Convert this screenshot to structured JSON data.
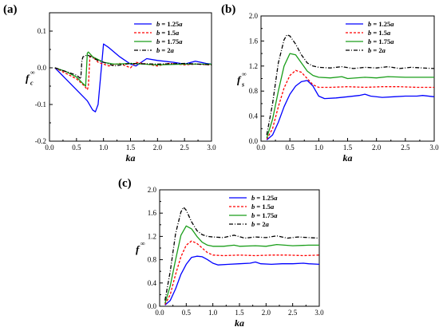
{
  "chart_data": [
    {
      "type": "line",
      "panel_label": "(a)",
      "ylabel": "f",
      "ylabel_sub": "c",
      "ylabel_sup": "∞",
      "xlabel": "ka",
      "xlim": [
        0.0,
        3.0
      ],
      "ylim": [
        -0.2,
        0.15
      ],
      "xticks": [
        "0.0",
        "0.5",
        "1.0",
        "1.5",
        "2.0",
        "2.5",
        "3.0"
      ],
      "yticks": [
        "-0.2",
        "-0.1",
        "0.0",
        "0.1"
      ],
      "ytick_values": [
        -0.2,
        -0.1,
        0.0,
        0.1
      ],
      "grid": false,
      "legend_position": "top-right",
      "series": [
        {
          "name": "b = 1.25a",
          "name_parts": [
            "b",
            " = 1.25",
            "a"
          ],
          "color": "#0000ff",
          "dash": "solid",
          "x": [
            0.1,
            0.3,
            0.5,
            0.7,
            0.8,
            0.85,
            0.9,
            1.0,
            1.1,
            1.3,
            1.5,
            1.6,
            1.7,
            1.8,
            2.0,
            2.3,
            2.5,
            2.7,
            2.9,
            3.0
          ],
          "y": [
            0.0,
            -0.03,
            -0.06,
            -0.09,
            -0.115,
            -0.12,
            -0.1,
            0.065,
            0.055,
            0.03,
            0.01,
            0.005,
            0.015,
            0.025,
            0.02,
            0.015,
            0.01,
            0.018,
            0.012,
            0.01
          ]
        },
        {
          "name": "b = 1.5a",
          "name_parts": [
            "b",
            " = 1.5",
            "a"
          ],
          "color": "#ff0000",
          "dash": "3,2",
          "x": [
            0.1,
            0.3,
            0.5,
            0.65,
            0.7,
            0.72,
            0.75,
            0.8,
            0.9,
            1.1,
            1.3,
            1.5,
            1.6,
            1.8,
            2.0,
            2.2,
            2.5,
            2.7,
            3.0
          ],
          "y": [
            0.0,
            -0.015,
            -0.03,
            -0.05,
            -0.06,
            -0.05,
            0.035,
            0.03,
            0.015,
            0.005,
            0.012,
            0.0,
            0.015,
            0.01,
            0.005,
            0.012,
            0.008,
            0.01,
            0.008
          ]
        },
        {
          "name": "b = 1.75a",
          "name_parts": [
            "b",
            " = 1.75",
            "a"
          ],
          "color": "#1a9e1a",
          "dash": "solid",
          "x": [
            0.1,
            0.3,
            0.5,
            0.6,
            0.67,
            0.7,
            0.72,
            0.8,
            1.0,
            1.2,
            1.5,
            2.0,
            2.5,
            3.0
          ],
          "y": [
            0.0,
            -0.01,
            -0.025,
            -0.04,
            -0.05,
            0.04,
            0.043,
            0.03,
            0.015,
            0.01,
            0.012,
            0.008,
            0.01,
            0.01
          ]
        },
        {
          "name": "b = 2a",
          "name_parts": [
            "b",
            " = 2",
            "a"
          ],
          "color": "#000000",
          "dash": "5,2,1,2",
          "x": [
            0.1,
            0.3,
            0.5,
            0.58,
            0.6,
            0.62,
            0.7,
            0.9,
            1.2,
            1.5,
            2.0,
            2.5,
            3.0
          ],
          "y": [
            0.0,
            -0.01,
            -0.02,
            -0.03,
            0.02,
            0.03,
            0.035,
            0.02,
            0.005,
            0.012,
            0.01,
            0.012,
            0.008
          ]
        }
      ]
    },
    {
      "type": "line",
      "panel_label": "(b)",
      "ylabel": "f",
      "ylabel_sub": "s",
      "ylabel_sup": "∞",
      "xlabel": "ka",
      "xlim": [
        0.0,
        3.0
      ],
      "ylim": [
        0.0,
        2.0
      ],
      "xticks": [
        "0.0",
        "0.5",
        "1.0",
        "1.5",
        "2.0",
        "2.5",
        "3.0"
      ],
      "yticks": [
        "0.0",
        "0.4",
        "0.8",
        "1.2",
        "1.6",
        "2.0"
      ],
      "ytick_values": [
        0.0,
        0.4,
        0.8,
        1.2,
        1.6,
        2.0
      ],
      "grid": false,
      "legend_position": "top-right",
      "series": [
        {
          "name": "b = 1.25a",
          "name_parts": [
            "b",
            " = 1.25",
            "a"
          ],
          "color": "#0000ff",
          "dash": "solid",
          "x": [
            0.1,
            0.2,
            0.3,
            0.4,
            0.5,
            0.6,
            0.7,
            0.8,
            0.9,
            1.0,
            1.1,
            1.3,
            1.5,
            1.7,
            1.8,
            1.9,
            2.1,
            2.3,
            2.5,
            2.7,
            2.8,
            3.0
          ],
          "y": [
            0.02,
            0.1,
            0.3,
            0.55,
            0.75,
            0.88,
            0.95,
            0.97,
            0.88,
            0.72,
            0.68,
            0.69,
            0.71,
            0.73,
            0.75,
            0.72,
            0.7,
            0.71,
            0.72,
            0.72,
            0.73,
            0.71
          ]
        },
        {
          "name": "b = 1.5a",
          "name_parts": [
            "b",
            " = 1.5",
            "a"
          ],
          "color": "#ff0000",
          "dash": "3,2",
          "x": [
            0.1,
            0.2,
            0.3,
            0.4,
            0.5,
            0.6,
            0.7,
            0.8,
            0.9,
            1.0,
            1.2,
            1.5,
            1.8,
            2.1,
            2.4,
            2.7,
            3.0
          ],
          "y": [
            0.03,
            0.2,
            0.55,
            0.85,
            1.05,
            1.13,
            1.1,
            1.0,
            0.9,
            0.86,
            0.86,
            0.87,
            0.86,
            0.87,
            0.87,
            0.86,
            0.86
          ]
        },
        {
          "name": "b = 1.75a",
          "name_parts": [
            "b",
            " = 1.75",
            "a"
          ],
          "color": "#1a9e1a",
          "dash": "solid",
          "x": [
            0.1,
            0.2,
            0.3,
            0.4,
            0.5,
            0.6,
            0.7,
            0.8,
            0.9,
            1.0,
            1.2,
            1.4,
            1.5,
            1.8,
            2.0,
            2.2,
            2.5,
            2.8,
            3.0
          ],
          "y": [
            0.05,
            0.35,
            0.8,
            1.2,
            1.4,
            1.38,
            1.25,
            1.12,
            1.05,
            1.02,
            1.01,
            1.03,
            1.0,
            1.02,
            1.01,
            1.03,
            1.02,
            1.02,
            1.02
          ]
        },
        {
          "name": "b = 2a",
          "name_parts": [
            "b",
            " = 2",
            "a"
          ],
          "color": "#000000",
          "dash": "5,2,1,2",
          "x": [
            0.1,
            0.2,
            0.3,
            0.4,
            0.45,
            0.5,
            0.6,
            0.7,
            0.8,
            0.9,
            1.0,
            1.2,
            1.4,
            1.6,
            1.8,
            2.0,
            2.2,
            2.4,
            2.6,
            2.8,
            3.0
          ],
          "y": [
            0.1,
            0.6,
            1.25,
            1.62,
            1.7,
            1.68,
            1.55,
            1.38,
            1.25,
            1.2,
            1.18,
            1.17,
            1.19,
            1.16,
            1.18,
            1.17,
            1.19,
            1.16,
            1.18,
            1.17,
            1.16
          ]
        }
      ]
    },
    {
      "type": "line",
      "panel_label": "(c)",
      "ylabel": "f",
      "ylabel_sub": "",
      "ylabel_sup": "∞",
      "xlabel": "ka",
      "xlim": [
        0.0,
        3.0
      ],
      "ylim": [
        0.0,
        2.0
      ],
      "xticks": [
        "0.0",
        "0.5",
        "1.0",
        "1.5",
        "2.0",
        "2.5",
        "3.0"
      ],
      "yticks": [
        "0.0",
        "0.4",
        "0.8",
        "1.2",
        "1.6",
        "2.0"
      ],
      "ytick_values": [
        0.0,
        0.4,
        0.8,
        1.2,
        1.6,
        2.0
      ],
      "grid": false,
      "legend_position": "top-right",
      "series": [
        {
          "name": "b = 1.25a",
          "name_parts": [
            "b",
            " = 1.25",
            "a"
          ],
          "color": "#0000ff",
          "dash": "solid",
          "x": [
            0.1,
            0.2,
            0.3,
            0.4,
            0.5,
            0.6,
            0.7,
            0.8,
            0.9,
            1.0,
            1.1,
            1.3,
            1.5,
            1.7,
            1.8,
            1.9,
            2.1,
            2.3,
            2.5,
            2.7,
            2.8,
            3.0
          ],
          "y": [
            0.02,
            0.1,
            0.3,
            0.55,
            0.72,
            0.84,
            0.86,
            0.85,
            0.8,
            0.74,
            0.71,
            0.72,
            0.73,
            0.74,
            0.76,
            0.73,
            0.72,
            0.73,
            0.73,
            0.74,
            0.73,
            0.72
          ]
        },
        {
          "name": "b = 1.5a",
          "name_parts": [
            "b",
            " = 1.5",
            "a"
          ],
          "color": "#ff0000",
          "dash": "3,2",
          "x": [
            0.1,
            0.2,
            0.3,
            0.4,
            0.5,
            0.6,
            0.7,
            0.8,
            0.9,
            1.0,
            1.2,
            1.5,
            1.8,
            2.1,
            2.4,
            2.7,
            3.0
          ],
          "y": [
            0.03,
            0.2,
            0.55,
            0.85,
            1.05,
            1.12,
            1.08,
            1.0,
            0.92,
            0.88,
            0.87,
            0.88,
            0.87,
            0.88,
            0.88,
            0.87,
            0.88
          ]
        },
        {
          "name": "b = 1.75a",
          "name_parts": [
            "b",
            " = 1.75",
            "a"
          ],
          "color": "#1a9e1a",
          "dash": "solid",
          "x": [
            0.1,
            0.2,
            0.3,
            0.4,
            0.5,
            0.6,
            0.7,
            0.8,
            0.9,
            1.0,
            1.2,
            1.4,
            1.5,
            1.8,
            2.0,
            2.2,
            2.5,
            2.8,
            3.0
          ],
          "y": [
            0.05,
            0.35,
            0.8,
            1.22,
            1.38,
            1.33,
            1.2,
            1.1,
            1.05,
            1.03,
            1.03,
            1.05,
            1.03,
            1.04,
            1.03,
            1.06,
            1.04,
            1.05,
            1.05
          ]
        },
        {
          "name": "b = 2a",
          "name_parts": [
            "b",
            " = 2",
            "a"
          ],
          "color": "#000000",
          "dash": "5,2,1,2",
          "x": [
            0.1,
            0.2,
            0.3,
            0.4,
            0.45,
            0.5,
            0.6,
            0.7,
            0.8,
            0.9,
            1.0,
            1.2,
            1.4,
            1.6,
            1.8,
            2.0,
            2.2,
            2.4,
            2.6,
            2.8,
            3.0
          ],
          "y": [
            0.1,
            0.6,
            1.25,
            1.62,
            1.7,
            1.65,
            1.45,
            1.3,
            1.23,
            1.2,
            1.19,
            1.18,
            1.22,
            1.17,
            1.19,
            1.18,
            1.21,
            1.17,
            1.19,
            1.18,
            1.17
          ]
        }
      ]
    }
  ]
}
